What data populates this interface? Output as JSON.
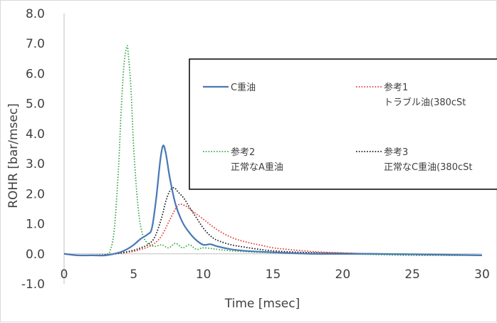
{
  "chart_data": {
    "type": "line",
    "xlabel": "Time [msec]",
    "ylabel": "ROHR [bar/msec]",
    "xlim": [
      0,
      30
    ],
    "ylim": [
      -1.0,
      8.0
    ],
    "x_ticks": [
      0,
      5,
      10,
      15,
      20,
      25,
      30
    ],
    "y_ticks": [
      -1.0,
      0.0,
      1.0,
      2.0,
      3.0,
      4.0,
      5.0,
      6.0,
      7.0,
      8.0
    ],
    "grid": false,
    "legend_position": "upper-right-boxed",
    "series": [
      {
        "name": "C重油",
        "name_parts": [
          "C重油"
        ],
        "color": "#4a7ab5",
        "style": "solid",
        "legend_slot": 0,
        "x": [
          0,
          1,
          2,
          3,
          4,
          4.5,
          5,
          5.5,
          6,
          6.3,
          6.6,
          6.9,
          7.1,
          7.3,
          7.6,
          8,
          8.5,
          9,
          9.5,
          10,
          10.5,
          11,
          12,
          13,
          15,
          18,
          22,
          26,
          30
        ],
        "y": [
          0.0,
          -0.05,
          -0.05,
          -0.05,
          0.05,
          0.15,
          0.3,
          0.5,
          0.65,
          0.85,
          1.8,
          3.1,
          3.6,
          3.35,
          2.5,
          1.65,
          1.05,
          0.7,
          0.45,
          0.3,
          0.32,
          0.25,
          0.15,
          0.1,
          0.05,
          0.0,
          0.0,
          -0.02,
          -0.05
        ]
      },
      {
        "name": "参考1 トラブル油(380cSt",
        "name_parts": [
          "参考1",
          "トラブル油(380cSt"
        ],
        "color": "#e03c31",
        "style": "dotted",
        "legend_slot": 1,
        "x": [
          0,
          1,
          2,
          3,
          4,
          5,
          5.5,
          6,
          6.5,
          7,
          7.5,
          8,
          8.3,
          8.7,
          9,
          10,
          11,
          12,
          13,
          14,
          15,
          16,
          18,
          20,
          22,
          25,
          28,
          30
        ],
        "y": [
          0.0,
          -0.05,
          -0.05,
          -0.03,
          0.02,
          0.08,
          0.15,
          0.22,
          0.35,
          0.6,
          1.05,
          1.5,
          1.65,
          1.6,
          1.5,
          1.15,
          0.8,
          0.55,
          0.4,
          0.3,
          0.2,
          0.15,
          0.07,
          0.03,
          0.0,
          -0.02,
          -0.04,
          -0.05
        ]
      },
      {
        "name": "参考2 正常なA重油",
        "name_parts": [
          "参考2",
          "正常なA重油"
        ],
        "color": "#3aa845",
        "style": "dotted",
        "legend_slot": 2,
        "x": [
          0,
          1,
          2,
          3,
          3.3,
          3.6,
          3.9,
          4.1,
          4.3,
          4.5,
          4.6,
          4.8,
          5.0,
          5.3,
          5.6,
          6,
          6.5,
          7,
          7.5,
          8,
          8.5,
          9,
          9.5,
          10,
          11,
          12,
          14,
          17,
          20,
          25,
          30
        ],
        "y": [
          0.0,
          -0.05,
          -0.05,
          -0.02,
          0.1,
          0.8,
          2.8,
          4.8,
          6.3,
          6.9,
          6.7,
          5.5,
          3.5,
          1.6,
          0.7,
          0.35,
          0.25,
          0.3,
          0.2,
          0.35,
          0.2,
          0.3,
          0.15,
          0.2,
          0.15,
          0.1,
          0.05,
          0.02,
          0.0,
          -0.05,
          -0.05
        ]
      },
      {
        "name": "参考3 正常なC重油(380cSt",
        "name_parts": [
          "参考3",
          "正常なC重油(380cSt"
        ],
        "color": "#1a1a1a",
        "style": "dotted",
        "legend_slot": 3,
        "x": [
          0,
          1,
          2,
          3,
          4,
          5,
          5.5,
          6,
          6.5,
          7,
          7.3,
          7.6,
          7.9,
          8.2,
          8.6,
          9,
          9.5,
          10,
          10.5,
          11,
          12,
          13,
          14,
          15,
          17,
          20,
          25,
          30
        ],
        "y": [
          0.0,
          -0.05,
          -0.05,
          -0.03,
          0.02,
          0.12,
          0.2,
          0.3,
          0.55,
          1.2,
          1.75,
          2.1,
          2.2,
          2.05,
          1.85,
          1.55,
          1.2,
          0.85,
          0.6,
          0.45,
          0.3,
          0.22,
          0.15,
          0.1,
          0.05,
          0.02,
          -0.02,
          -0.05
        ]
      }
    ]
  }
}
